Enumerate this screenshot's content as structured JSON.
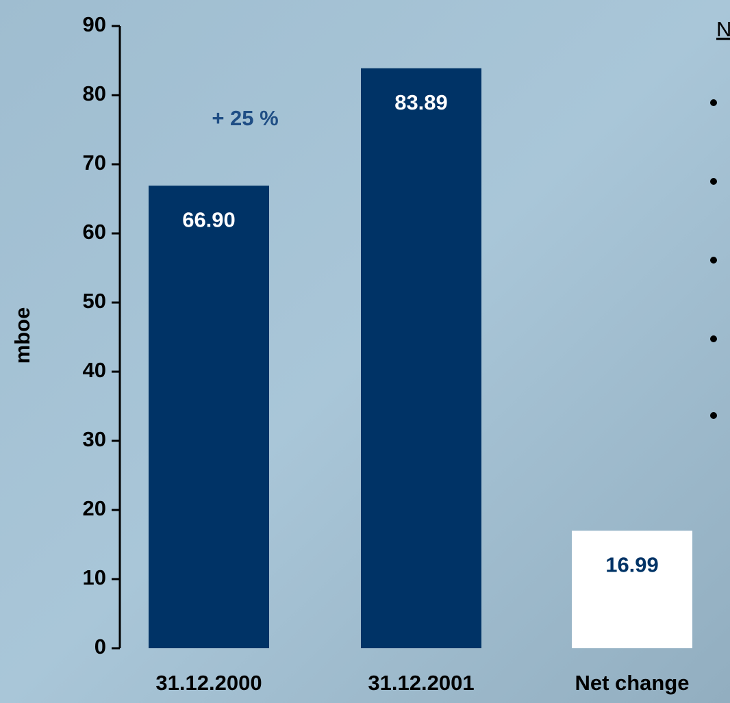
{
  "chart_data": {
    "type": "bar",
    "y_label": "mboe",
    "categories": [
      "31.12.2000",
      "31.12.2001",
      "Net change"
    ],
    "values": [
      66.9,
      83.89,
      16.99
    ],
    "value_labels": [
      "66.90",
      "83.89",
      "16.99"
    ],
    "colors": [
      "#003366",
      "#003366",
      "#ffffff"
    ],
    "label_colors": [
      "#ffffff",
      "#ffffff",
      "#003366"
    ],
    "annotation": "+ 25 %",
    "annotation_color": "#1f4e85",
    "side_heading": "N",
    "ylim": [
      0,
      90
    ],
    "yticks": [
      0,
      10,
      20,
      30,
      40,
      50,
      60,
      70,
      80,
      90
    ]
  }
}
